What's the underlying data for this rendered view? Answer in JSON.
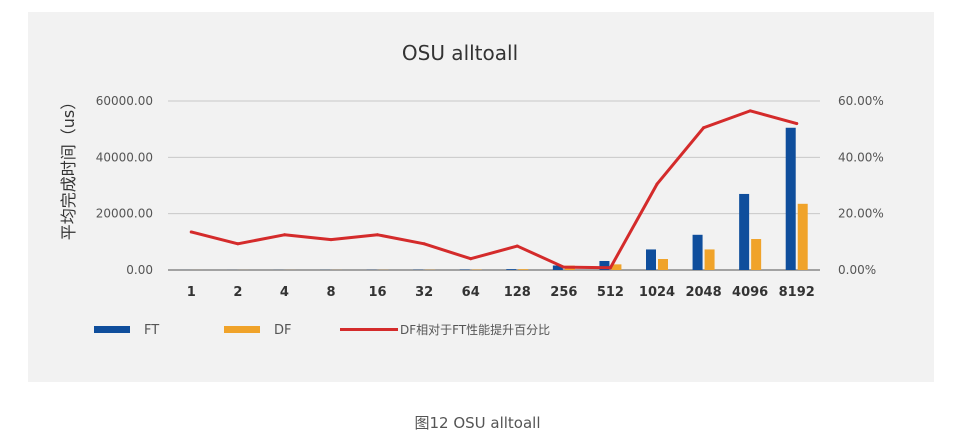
{
  "caption": "图12 OSU alltoall",
  "chart_data": {
    "type": "bar",
    "title": "OSU alltoall",
    "ylabel": "平均完成时间（us）",
    "xlabel": "",
    "y_unit_label": "(us)",
    "categories": [
      "1",
      "2",
      "4",
      "8",
      "16",
      "32",
      "64",
      "128",
      "256",
      "512",
      "1024",
      "2048",
      "4096",
      "8192"
    ],
    "ylim": [
      0,
      60000
    ],
    "y_ticks": [
      "0.00",
      "20000.00",
      "40000.00",
      "60000.00"
    ],
    "y2lim": [
      0,
      0.6
    ],
    "y2_ticks": [
      "0.00%",
      "20.00%",
      "40.00%",
      "60.00%"
    ],
    "grid": true,
    "legend": "bottom-left",
    "series": [
      {
        "name": "FT",
        "kind": "bar",
        "axis": "left",
        "color": "#0f4e9c",
        "values": [
          15,
          20,
          30,
          40,
          60,
          90,
          150,
          300,
          1600,
          3200,
          7300,
          12500,
          27000,
          50500
        ]
      },
      {
        "name": "DF",
        "kind": "bar",
        "axis": "left",
        "color": "#f0a32a",
        "values": [
          12,
          18,
          26,
          35,
          52,
          80,
          140,
          280,
          1550,
          2000,
          3900,
          7300,
          11000,
          23500
        ]
      },
      {
        "name": "DF相对于FT性能提升百分比",
        "kind": "line",
        "axis": "right",
        "color": "#d42b2b",
        "values": [
          0.135,
          0.093,
          0.125,
          0.108,
          0.125,
          0.093,
          0.04,
          0.085,
          0.01,
          0.008,
          0.305,
          0.505,
          0.565,
          0.52
        ]
      }
    ]
  }
}
